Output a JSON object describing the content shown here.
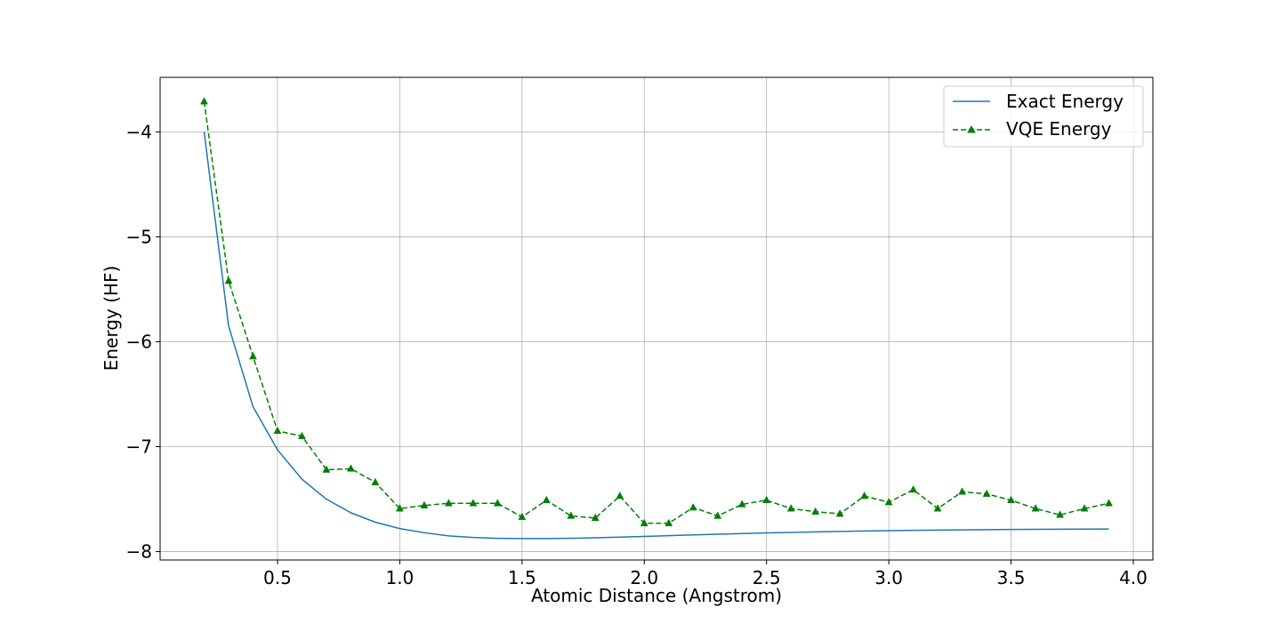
{
  "chart_data": {
    "type": "line",
    "xlabel": "Atomic Distance (Angstrom)",
    "ylabel": "Energy (HF)",
    "xlim": [
      0.02,
      4.08
    ],
    "ylim": [
      -8.08,
      -3.48
    ],
    "xticks": [
      0.5,
      1.0,
      1.5,
      2.0,
      2.5,
      3.0,
      3.5,
      4.0
    ],
    "xtick_labels": [
      "0.5",
      "1.0",
      "1.5",
      "2.0",
      "2.5",
      "3.0",
      "3.5",
      "4.0"
    ],
    "yticks": [
      -8,
      -7,
      -6,
      -5,
      -4
    ],
    "ytick_labels": [
      "−8",
      "−7",
      "−6",
      "−5",
      "−4"
    ],
    "grid": true,
    "legend_position": "top-right",
    "x": [
      0.2,
      0.3,
      0.4,
      0.5,
      0.6,
      0.7,
      0.8,
      0.9,
      1.0,
      1.1,
      1.2,
      1.3,
      1.4,
      1.5,
      1.6,
      1.7,
      1.8,
      1.9,
      2.0,
      2.1,
      2.2,
      2.3,
      2.4,
      2.5,
      2.6,
      2.7,
      2.8,
      2.9,
      3.0,
      3.1,
      3.2,
      3.3,
      3.4,
      3.5,
      3.6,
      3.7,
      3.8,
      3.9
    ],
    "series": [
      {
        "name": "Exact Energy",
        "color": "#1f77b4",
        "style": "solid",
        "marker": "none",
        "values": [
          -4.0,
          -5.85,
          -6.62,
          -7.03,
          -7.31,
          -7.5,
          -7.63,
          -7.72,
          -7.78,
          -7.82,
          -7.85,
          -7.865,
          -7.873,
          -7.876,
          -7.876,
          -7.873,
          -7.868,
          -7.862,
          -7.855,
          -7.848,
          -7.841,
          -7.834,
          -7.828,
          -7.822,
          -7.817,
          -7.812,
          -7.808,
          -7.804,
          -7.8,
          -7.797,
          -7.795,
          -7.793,
          -7.791,
          -7.789,
          -7.788,
          -7.787,
          -7.786,
          -7.785
        ]
      },
      {
        "name": "VQE Energy",
        "color": "#008000",
        "style": "dashed",
        "marker": "triangle",
        "values": [
          -3.71,
          -5.42,
          -6.14,
          -6.85,
          -6.9,
          -7.22,
          -7.21,
          -7.34,
          -7.59,
          -7.56,
          -7.54,
          -7.54,
          -7.54,
          -7.67,
          -7.51,
          -7.66,
          -7.68,
          -7.47,
          -7.73,
          -7.73,
          -7.58,
          -7.66,
          -7.55,
          -7.51,
          -7.59,
          -7.62,
          -7.64,
          -7.47,
          -7.53,
          -7.41,
          -7.59,
          -7.43,
          -7.45,
          -7.51,
          -7.59,
          -7.65,
          -7.59,
          -7.54
        ]
      }
    ]
  }
}
